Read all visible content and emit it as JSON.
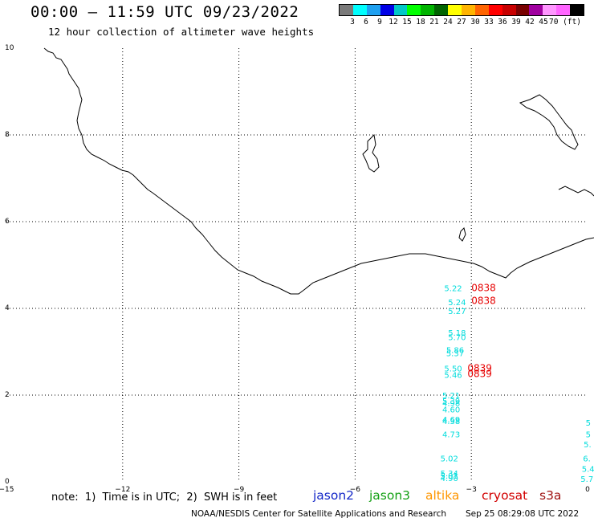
{
  "header": {
    "title": "00:00 – 11:59 UTC 09/23/2022",
    "subtitle": "12 hour collection of altimeter wave heights"
  },
  "color_scale": {
    "labels": [
      "3",
      "6",
      "9",
      "12",
      "15",
      "18",
      "21",
      "24",
      "27",
      "30",
      "33",
      "36",
      "39",
      "42",
      "45",
      "70 (ft)"
    ],
    "colors": [
      "#7a7a7a",
      "#00ffff",
      "#1ea0f0",
      "#0000e6",
      "#00c8c8",
      "#00ff00",
      "#00b400",
      "#006400",
      "#ffff00",
      "#ffb400",
      "#ff6400",
      "#ff0000",
      "#c80000",
      "#780000",
      "#a000a0",
      "#ff96ff",
      "#ff64ff",
      "#000000"
    ]
  },
  "axes": {
    "x_ticks": [
      "−15",
      "−12",
      "−9",
      "−6",
      "−3",
      "0"
    ],
    "y_ticks": [
      "0",
      "2",
      "4",
      "6",
      "8",
      "10"
    ],
    "x_range": [
      -15,
      0
    ],
    "y_range": [
      0,
      10
    ]
  },
  "observations": {
    "jason3_cyan": [
      {
        "lon": -3.7,
        "lat": 4.4,
        "value": "5.22"
      },
      {
        "lon": -3.6,
        "lat": 4.07,
        "value": "5.24"
      },
      {
        "lon": -3.6,
        "lat": 3.87,
        "value": "5.27"
      },
      {
        "lon": -3.6,
        "lat": 3.37,
        "value": "5.18"
      },
      {
        "lon": -3.6,
        "lat": 3.27,
        "value": "5.70"
      },
      {
        "lon": -3.65,
        "lat": 2.97,
        "value": "5.86"
      },
      {
        "lon": -3.65,
        "lat": 2.9,
        "value": "5.37"
      },
      {
        "lon": -3.7,
        "lat": 2.55,
        "value": "5.50"
      },
      {
        "lon": -3.7,
        "lat": 2.4,
        "value": "5.46"
      },
      {
        "lon": -3.75,
        "lat": 1.93,
        "value": "5.21"
      },
      {
        "lon": -3.75,
        "lat": 1.8,
        "value": "5.39"
      },
      {
        "lon": -3.75,
        "lat": 1.75,
        "value": "4.98"
      },
      {
        "lon": -3.75,
        "lat": 1.6,
        "value": "4.60"
      },
      {
        "lon": -3.75,
        "lat": 1.37,
        "value": "4.69"
      },
      {
        "lon": -3.75,
        "lat": 1.33,
        "value": "4.38"
      },
      {
        "lon": -3.75,
        "lat": 1.03,
        "value": "4.73"
      },
      {
        "lon": -3.8,
        "lat": 0.47,
        "value": "5.02"
      },
      {
        "lon": -3.8,
        "lat": 0.13,
        "value": "5.34"
      },
      {
        "lon": -3.8,
        "lat": 0.07,
        "value": "5.01"
      },
      {
        "lon": -3.8,
        "lat": 0.02,
        "value": "4.90"
      }
    ],
    "cryosat_red": [
      {
        "lon": -3.0,
        "lat": 4.4,
        "value": "0838"
      },
      {
        "lon": -3.0,
        "lat": 4.1,
        "value": "0838"
      },
      {
        "lon": -3.1,
        "lat": 2.55,
        "value": "0839"
      },
      {
        "lon": -3.1,
        "lat": 2.42,
        "value": "0839"
      }
    ],
    "edge_cyan": [
      {
        "lon": -0.05,
        "lat": 1.3,
        "value": "5"
      },
      {
        "lon": -0.05,
        "lat": 1.03,
        "value": "5"
      },
      {
        "lon": -0.1,
        "lat": 0.8,
        "value": "5."
      },
      {
        "lon": -0.12,
        "lat": 0.47,
        "value": "6."
      },
      {
        "lon": -0.15,
        "lat": 0.23,
        "value": "5.4"
      },
      {
        "lon": -0.18,
        "lat": 0.0,
        "value": "5.7"
      }
    ]
  },
  "footer": {
    "note": "note:  1)  Time is in UTC;  2)  SWH is in feet",
    "legend": [
      {
        "label": "jason2",
        "color": "#1428c8"
      },
      {
        "label": "jason3",
        "color": "#14a014"
      },
      {
        "label": "altika",
        "color": "#ff9600"
      },
      {
        "label": "cryosat",
        "color": "#d20000"
      },
      {
        "label": "s3a",
        "color": "#a01414"
      }
    ],
    "credit": "NOAA/NESDIS Center for Satellite Applications and Research",
    "generated": "Sep 25 08:29:08 UTC 2022"
  },
  "colors": {
    "jason3_value": "#00dcdc",
    "cryosat_time": "#e60000",
    "coastline": "#000000",
    "grid": "#000000"
  }
}
